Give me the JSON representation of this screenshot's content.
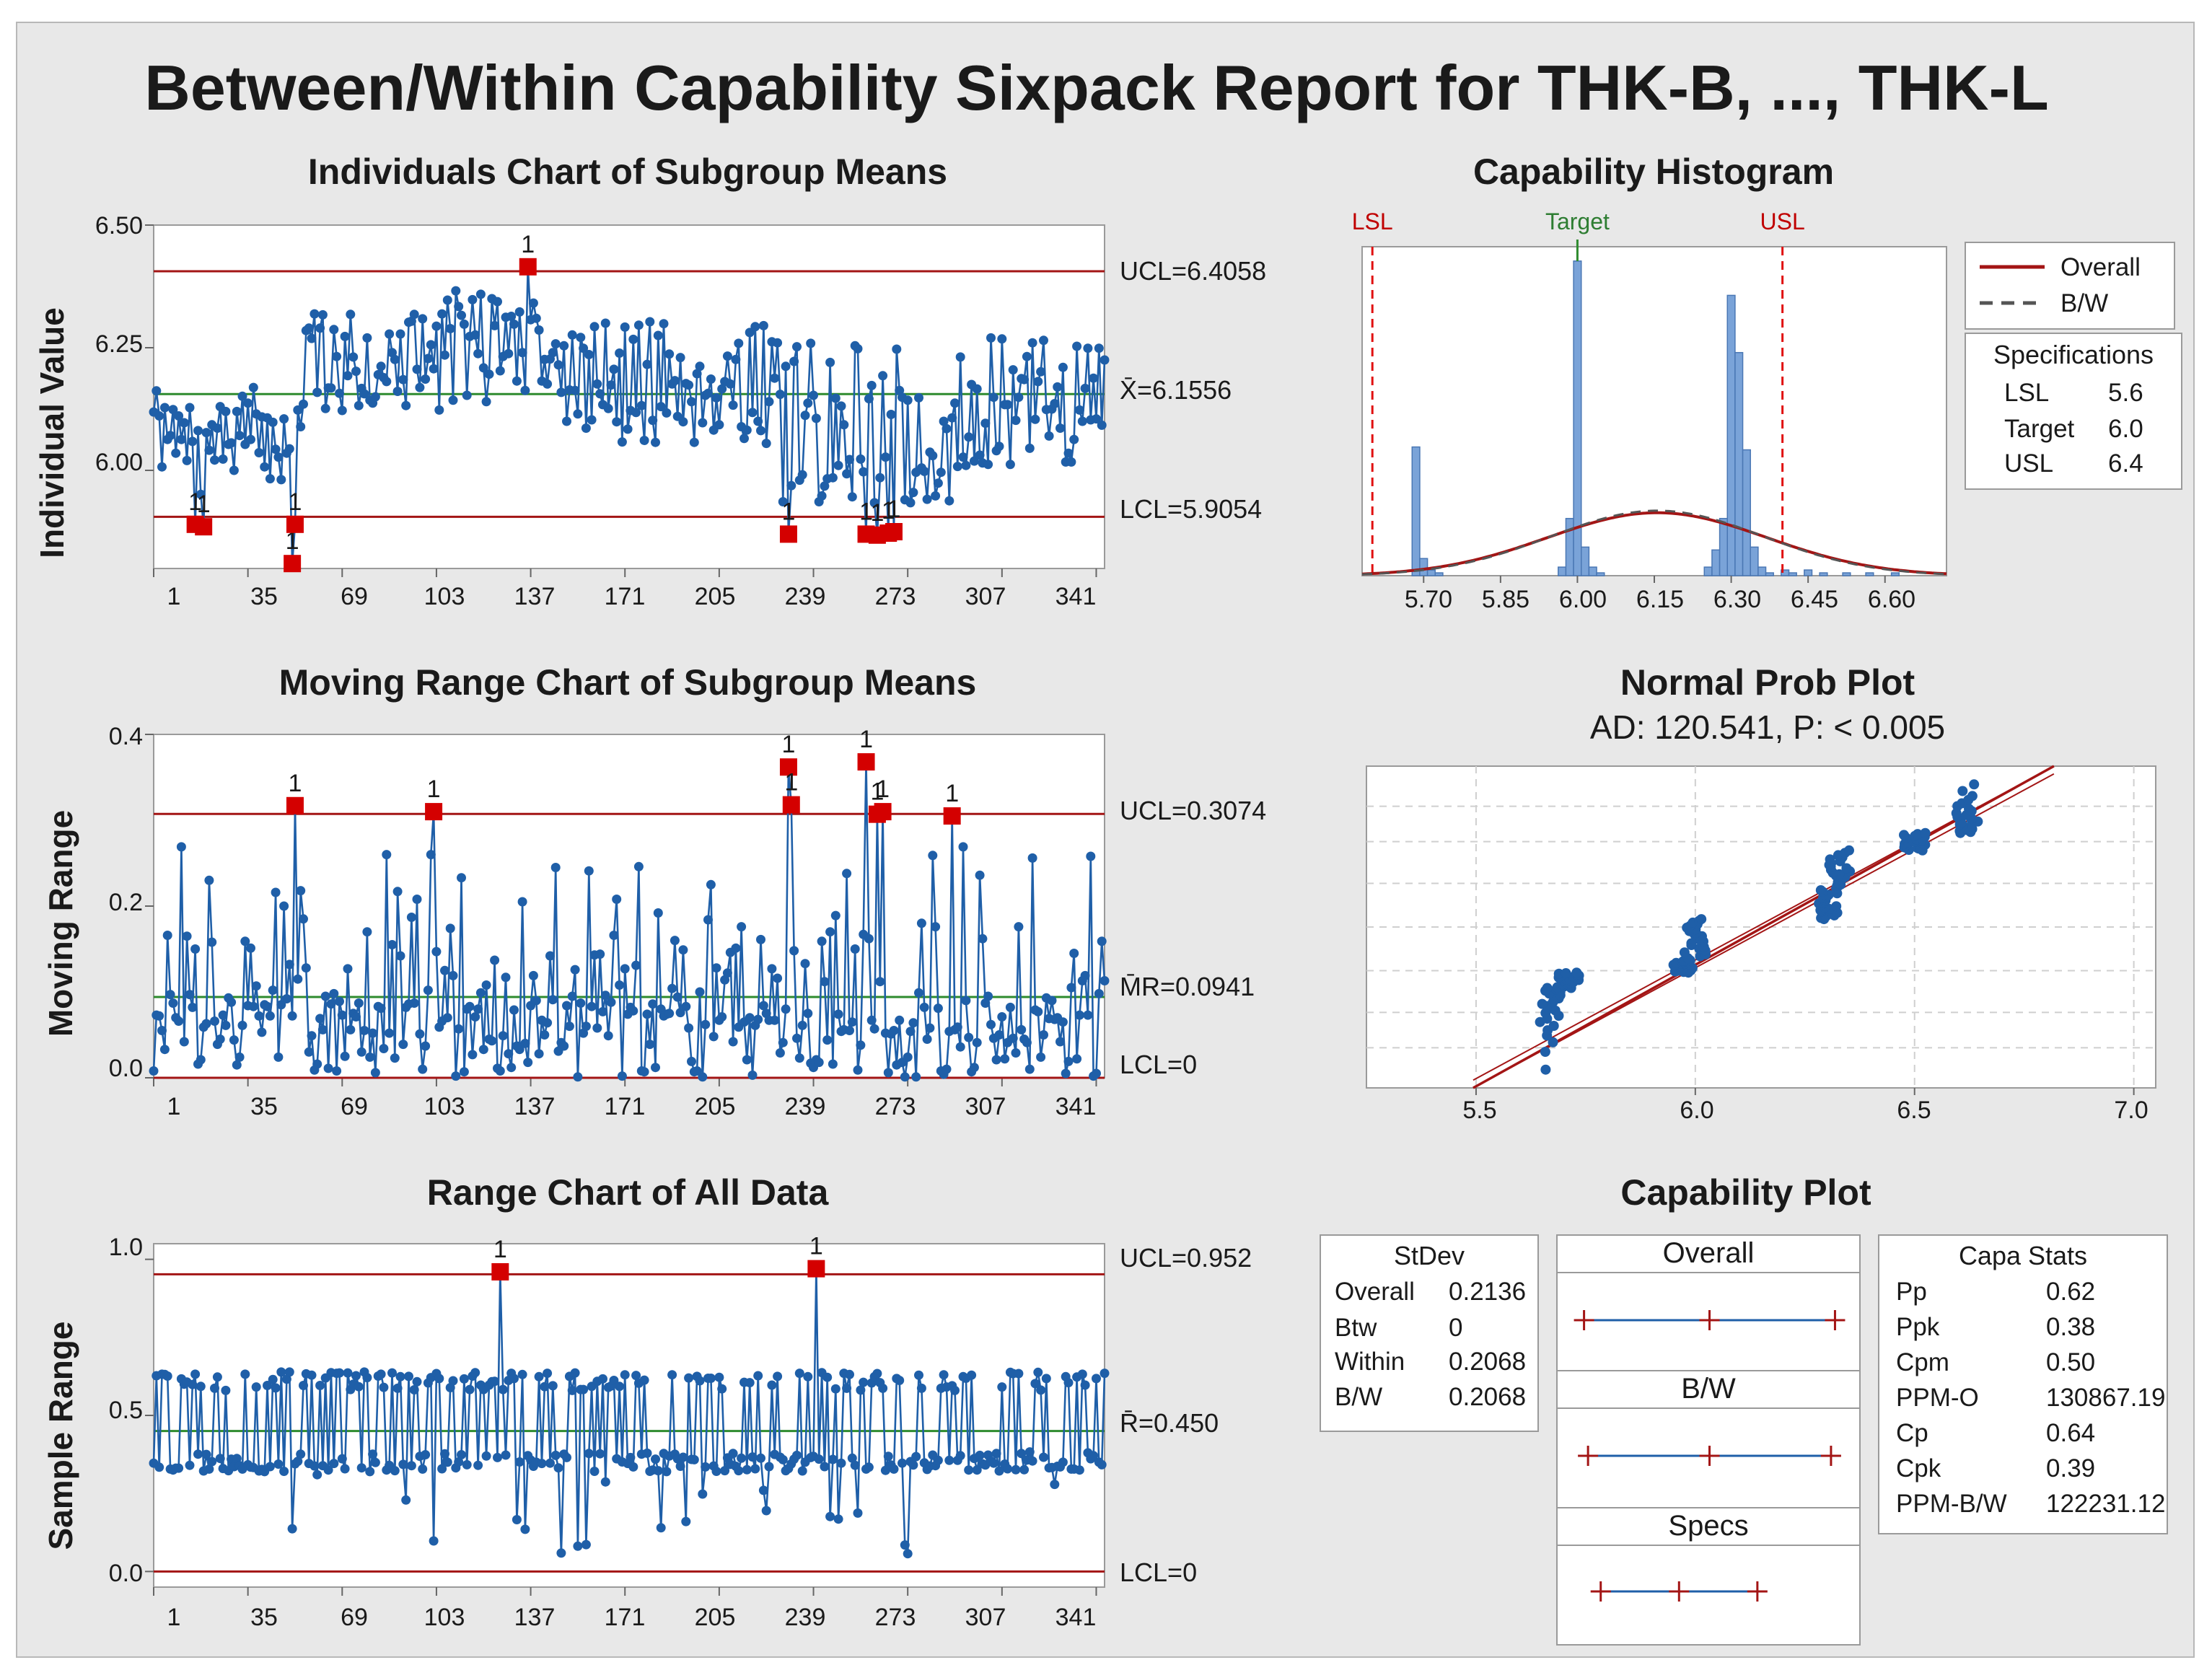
{
  "report": {
    "title": "Between/Within Capability Sixpack Report for THK-B, ..., THK-L"
  },
  "colors": {
    "background": "#e8e8e8",
    "data": "#1f5fa8",
    "limit": "#a31515",
    "center": "#2e8b2e",
    "out_of_control": "#d40000",
    "histogram_bar": "#7aa3d8",
    "spec_line": "#e01010"
  },
  "chart_data": [
    {
      "id": "individuals",
      "type": "line",
      "title": "Individuals Chart of Subgroup Means",
      "ylabel": "Individual Value",
      "xlim": [
        1,
        344
      ],
      "ylim": [
        5.8,
        6.5
      ],
      "x_ticks": [
        "1",
        "35",
        "69",
        "103",
        "137",
        "171",
        "205",
        "239",
        "273",
        "307",
        "341"
      ],
      "y_ticks": [
        "6.50",
        "6.25",
        "6.00"
      ],
      "ucl": 6.4058,
      "center": 6.1556,
      "lcl": 5.9054,
      "ucl_label": "UCL=6.4058",
      "center_label": "X̄=6.1556",
      "lcl_label": "LCL=5.9054",
      "out_of_control_label": "1",
      "violations": [
        {
          "x": 16,
          "y": 5.89
        },
        {
          "x": 19,
          "y": 5.885
        },
        {
          "x": 51,
          "y": 5.81
        },
        {
          "x": 52,
          "y": 5.89
        },
        {
          "x": 136,
          "y": 6.415
        },
        {
          "x": 230,
          "y": 5.87
        },
        {
          "x": 258,
          "y": 5.87
        },
        {
          "x": 262,
          "y": 5.868
        },
        {
          "x": 266,
          "y": 5.872
        },
        {
          "x": 268,
          "y": 5.875
        }
      ]
    },
    {
      "id": "moving_range",
      "type": "line",
      "title": "Moving Range Chart of Subgroup Means",
      "ylabel": "Moving Range",
      "xlim": [
        1,
        344
      ],
      "ylim": [
        0.0,
        0.4
      ],
      "x_ticks": [
        "1",
        "35",
        "69",
        "103",
        "137",
        "171",
        "205",
        "239",
        "273",
        "307",
        "341"
      ],
      "y_ticks": [
        "0.4",
        "0.2",
        "0.0"
      ],
      "ucl": 0.3074,
      "center": 0.0941,
      "lcl": 0.0,
      "ucl_label": "UCL=0.3074",
      "center_label": "M̄R=0.0941",
      "lcl_label": "LCL=0",
      "out_of_control_label": "1",
      "violations": [
        {
          "x": 52,
          "y": 0.317
        },
        {
          "x": 102,
          "y": 0.31
        },
        {
          "x": 230,
          "y": 0.362
        },
        {
          "x": 231,
          "y": 0.318
        },
        {
          "x": 258,
          "y": 0.368
        },
        {
          "x": 262,
          "y": 0.307
        },
        {
          "x": 264,
          "y": 0.31
        },
        {
          "x": 289,
          "y": 0.305
        }
      ]
    },
    {
      "id": "range",
      "type": "line",
      "title": "Range Chart of All Data",
      "ylabel": "Sample Range",
      "xlim": [
        1,
        344
      ],
      "ylim": [
        -0.05,
        1.05
      ],
      "x_ticks": [
        "1",
        "35",
        "69",
        "103",
        "137",
        "171",
        "205",
        "239",
        "273",
        "307",
        "341"
      ],
      "y_ticks": [
        "1.0",
        "0.5",
        "0.0"
      ],
      "ucl": 0.952,
      "center": 0.45,
      "lcl": 0.0,
      "ucl_label": "UCL=0.952",
      "center_label": "R̄=0.450",
      "lcl_label": "LCL=0",
      "out_of_control_label": "1",
      "violations": [
        {
          "x": 126,
          "y": 0.96
        },
        {
          "x": 240,
          "y": 0.97
        }
      ]
    },
    {
      "id": "capability_histogram",
      "type": "bar",
      "title": "Capability Histogram",
      "xlim": [
        5.58,
        6.72
      ],
      "x_ticks": [
        "5.70",
        "5.85",
        "6.00",
        "6.15",
        "6.30",
        "6.45",
        "6.60"
      ],
      "bin_width": 0.015,
      "bins": [
        {
          "x": 5.685,
          "count": 45
        },
        {
          "x": 5.7,
          "count": 6
        },
        {
          "x": 5.715,
          "count": 2
        },
        {
          "x": 5.73,
          "count": 1
        },
        {
          "x": 5.97,
          "count": 3
        },
        {
          "x": 5.985,
          "count": 20
        },
        {
          "x": 6.0,
          "count": 110
        },
        {
          "x": 6.015,
          "count": 10
        },
        {
          "x": 6.03,
          "count": 3
        },
        {
          "x": 6.045,
          "count": 1
        },
        {
          "x": 6.255,
          "count": 3
        },
        {
          "x": 6.27,
          "count": 9
        },
        {
          "x": 6.285,
          "count": 20
        },
        {
          "x": 6.3,
          "count": 98
        },
        {
          "x": 6.315,
          "count": 78
        },
        {
          "x": 6.33,
          "count": 44
        },
        {
          "x": 6.345,
          "count": 10
        },
        {
          "x": 6.36,
          "count": 3
        },
        {
          "x": 6.375,
          "count": 1
        },
        {
          "x": 6.405,
          "count": 2
        },
        {
          "x": 6.42,
          "count": 1
        },
        {
          "x": 6.45,
          "count": 2
        },
        {
          "x": 6.48,
          "count": 1
        },
        {
          "x": 6.525,
          "count": 1
        },
        {
          "x": 6.57,
          "count": 1
        },
        {
          "x": 6.62,
          "count": 1
        }
      ],
      "count_max": 115,
      "curve_mean": 6.1556,
      "curve_peak_count": 22,
      "overall_sd": 0.2136,
      "bw_sd": 0.2068,
      "spec_labels": {
        "lsl": "LSL",
        "target": "Target",
        "usl": "USL"
      },
      "legend": {
        "overall": "Overall",
        "bw": "B/W"
      },
      "specifications": {
        "title": "Specifications",
        "rows": [
          {
            "label": "LSL",
            "value": "5.6",
            "num": 5.6
          },
          {
            "label": "Target",
            "value": "6.0",
            "num": 6.0
          },
          {
            "label": "USL",
            "value": "6.4",
            "num": 6.4
          }
        ]
      }
    },
    {
      "id": "normal_prob_plot",
      "type": "scatter",
      "title": "Normal Prob Plot",
      "subtitle": "AD: 120.541, P: < 0.005",
      "xlim": [
        5.25,
        7.05
      ],
      "x_ticks": [
        "5.5",
        "6.0",
        "6.5",
        "7.0"
      ],
      "x_tick_values": [
        5.5,
        6.0,
        6.5,
        7.0
      ],
      "normal_mean": 6.1556,
      "normal_sd": 0.2136,
      "point_groups": [
        {
          "value": 5.67,
          "p_start": 0.003,
          "p_end": 0.12
        },
        {
          "value": 5.71,
          "p_start": 0.12,
          "p_end": 0.19
        },
        {
          "value": 5.97,
          "p_start": 0.19,
          "p_end": 0.26
        },
        {
          "value": 6.0,
          "p_start": 0.26,
          "p_end": 0.56
        },
        {
          "value": 6.3,
          "p_start": 0.56,
          "p_end": 0.78
        },
        {
          "value": 6.33,
          "p_start": 0.78,
          "p_end": 0.93
        },
        {
          "value": 6.5,
          "p_start": 0.93,
          "p_end": 0.965
        },
        {
          "value": 6.62,
          "p_start": 0.965,
          "p_end": 0.997
        }
      ]
    },
    {
      "id": "capability_plot",
      "type": "other",
      "title": "Capability Plot",
      "stdev": {
        "title": "StDev",
        "rows": [
          {
            "label": "Overall",
            "value": "0.2136"
          },
          {
            "label": "Btw",
            "value": "0"
          },
          {
            "label": "Within",
            "value": "0.2068"
          },
          {
            "label": "B/W",
            "value": "0.2068"
          }
        ]
      },
      "intervals": [
        {
          "label": "Overall",
          "low": 5.5148,
          "mid": 6.1556,
          "high": 6.7964
        },
        {
          "label": "B/W",
          "low": 5.5352,
          "mid": 6.1556,
          "high": 6.776
        },
        {
          "label": "Specs",
          "low": 5.6,
          "mid": 6.0,
          "high": 6.4
        }
      ],
      "interval_xlim": [
        5.45,
        6.85
      ],
      "capa_stats": {
        "title": "Capa Stats",
        "rows": [
          {
            "label": "Pp",
            "value": "0.62"
          },
          {
            "label": "Ppk",
            "value": "0.38"
          },
          {
            "label": "Cpm",
            "value": "0.50"
          },
          {
            "label": "PPM-O",
            "value": "130867.19"
          },
          {
            "label": "Cp",
            "value": "0.64"
          },
          {
            "label": "Cpk",
            "value": "0.39"
          },
          {
            "label": "PPM-B/W",
            "value": "122231.12"
          }
        ]
      }
    }
  ]
}
